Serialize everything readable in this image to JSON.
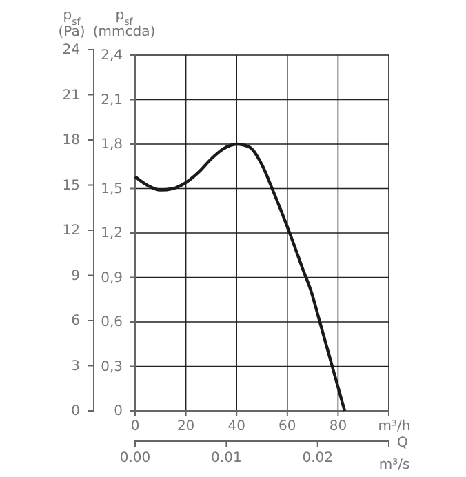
{
  "chart_data": {
    "type": "line",
    "xlabel": "m³/h",
    "x2label": "m³/s",
    "ylabel": "p$_{sf}$ (mmcda)",
    "y2label": "p$_{sf}$ (Pa)",
    "annotations": [
      "Q"
    ],
    "xlim": [
      0,
      100
    ],
    "xticks": [
      0,
      20,
      40,
      60,
      80,
      {
        "value": 100,
        "label": null
      }
    ],
    "x2lim": [
      0,
      0.0278
    ],
    "x2ticks": [
      {
        "value": 0,
        "label": "0.00"
      },
      0.01,
      0.02
    ],
    "ylim": [
      0,
      2.4
    ],
    "yticks": [
      {
        "value": 0,
        "label": "0"
      },
      {
        "value": 0.3,
        "label": "0,3"
      },
      {
        "value": 0.6,
        "label": "0,6"
      },
      {
        "value": 0.9,
        "label": "0,9"
      },
      {
        "value": 1.2,
        "label": "1,2"
      },
      {
        "value": 1.5,
        "label": "1,5"
      },
      {
        "value": 1.8,
        "label": "1,8"
      },
      {
        "value": 2.1,
        "label": "2,1"
      },
      {
        "value": 2.4,
        "label": "2,4"
      }
    ],
    "y2lim": [
      0,
      24
    ],
    "y2ticks": [
      0,
      3,
      6,
      9,
      12,
      15,
      18,
      21,
      24
    ],
    "grid": true,
    "marker": "none",
    "line_style": "solid",
    "series": [
      {
        "color": "#1a1a1a",
        "x": [
          0,
          5,
          10,
          15,
          20,
          25,
          30,
          35,
          40,
          45,
          50,
          54,
          58,
          62,
          66,
          69.5,
          72.8,
          77.7,
          82.6
        ],
        "values": [
          1.58,
          1.52,
          1.49,
          1.5,
          1.54,
          1.61,
          1.7,
          1.77,
          1.8,
          1.78,
          1.66,
          1.5,
          1.33,
          1.15,
          0.96,
          0.8,
          0.6,
          0.3,
          0
        ]
      }
    ]
  }
}
